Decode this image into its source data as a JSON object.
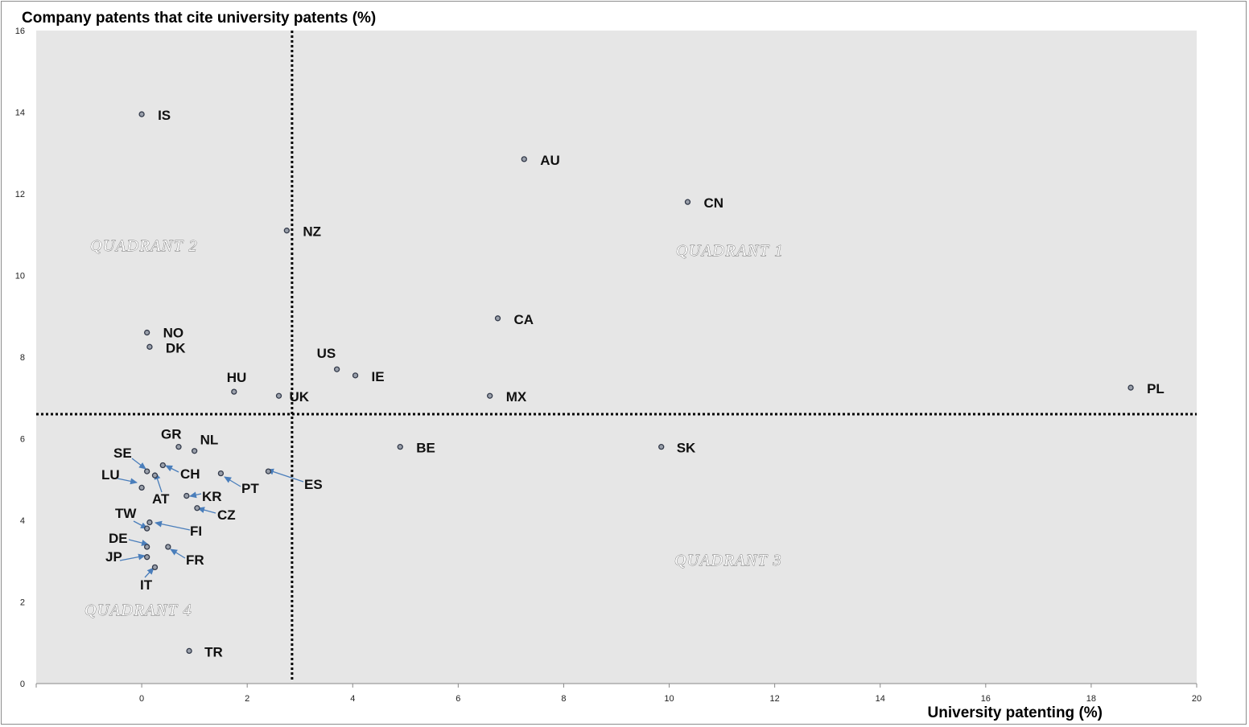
{
  "chart_data": {
    "type": "scatter",
    "ylabel": "Company patents that cite university patents (%)",
    "xlabel": "University patenting (%)",
    "xlim": [
      -2,
      20
    ],
    "ylim": [
      0,
      16
    ],
    "x_ticks": [
      0,
      2,
      4,
      6,
      8,
      10,
      12,
      14,
      16,
      18,
      20
    ],
    "y_ticks": [
      0,
      2,
      4,
      6,
      8,
      10,
      12,
      14,
      16
    ],
    "grid": false,
    "reference_lines": {
      "x": 2.85,
      "y": 6.6
    },
    "quadrants": [
      "QUADRANT 1",
      "QUADRANT 2",
      "QUADRANT 3",
      "QUADRANT 4"
    ],
    "points": [
      {
        "label": "IS",
        "x": 0.0,
        "y": 13.95
      },
      {
        "label": "AU",
        "x": 7.25,
        "y": 12.85
      },
      {
        "label": "CN",
        "x": 10.35,
        "y": 11.8
      },
      {
        "label": "NZ",
        "x": 2.75,
        "y": 11.1
      },
      {
        "label": "CA",
        "x": 6.75,
        "y": 8.95
      },
      {
        "label": "NO",
        "x": 0.1,
        "y": 8.6
      },
      {
        "label": "DK",
        "x": 0.15,
        "y": 8.25
      },
      {
        "label": "US",
        "x": 3.7,
        "y": 7.7
      },
      {
        "label": "IE",
        "x": 4.05,
        "y": 7.55
      },
      {
        "label": "HU",
        "x": 1.75,
        "y": 7.15
      },
      {
        "label": "UK",
        "x": 2.6,
        "y": 7.05
      },
      {
        "label": "MX",
        "x": 6.6,
        "y": 7.05
      },
      {
        "label": "PL",
        "x": 18.75,
        "y": 7.25
      },
      {
        "label": "GR",
        "x": 0.7,
        "y": 5.8
      },
      {
        "label": "NL",
        "x": 1.0,
        "y": 5.7
      },
      {
        "label": "BE",
        "x": 4.9,
        "y": 5.8
      },
      {
        "label": "SK",
        "x": 9.85,
        "y": 5.8
      },
      {
        "label": "SE",
        "x": 0.1,
        "y": 5.2
      },
      {
        "label": "CH",
        "x": 0.4,
        "y": 5.35
      },
      {
        "label": "AT",
        "x": 0.25,
        "y": 5.1
      },
      {
        "label": "LU",
        "x": 0.0,
        "y": 4.8
      },
      {
        "label": "PT",
        "x": 1.5,
        "y": 5.15
      },
      {
        "label": "ES",
        "x": 2.4,
        "y": 5.2
      },
      {
        "label": "KR",
        "x": 0.85,
        "y": 4.6
      },
      {
        "label": "CZ",
        "x": 1.05,
        "y": 4.3
      },
      {
        "label": "TW",
        "x": 0.1,
        "y": 3.8
      },
      {
        "label": "FI",
        "x": 0.15,
        "y": 3.95
      },
      {
        "label": "DE",
        "x": 0.1,
        "y": 3.35
      },
      {
        "label": "FR",
        "x": 0.5,
        "y": 3.35
      },
      {
        "label": "JP",
        "x": 0.1,
        "y": 3.1
      },
      {
        "label": "IT",
        "x": 0.25,
        "y": 2.85
      },
      {
        "label": "TR",
        "x": 0.9,
        "y": 0.8
      }
    ]
  }
}
